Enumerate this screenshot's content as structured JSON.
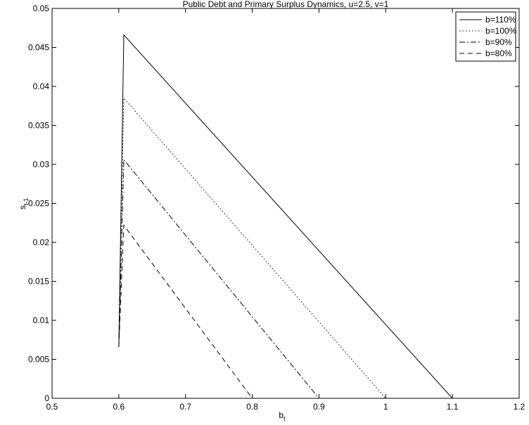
{
  "chart_data": {
    "type": "line",
    "title": "Public Debt and Primary Surplus Dynamics, u=2.5, v=1",
    "xlabel": "b",
    "xlabel_sub": "t",
    "ylabel": "s",
    "ylabel_sub": "t-1",
    "xlim": [
      0.5,
      1.2
    ],
    "ylim": [
      0,
      0.05
    ],
    "xticks": [
      0.5,
      0.6,
      0.7,
      0.8,
      0.9,
      1.0,
      1.1,
      1.2
    ],
    "xtick_labels": [
      "0.5",
      "0.6",
      "0.7",
      "0.8",
      "0.9",
      "1",
      "1.1",
      "1.2"
    ],
    "yticks": [
      0,
      0.005,
      0.01,
      0.015,
      0.02,
      0.025,
      0.03,
      0.035,
      0.04,
      0.045,
      0.05
    ],
    "ytick_labels": [
      "0",
      "0.005",
      "0.01",
      "0.015",
      "0.02",
      "0.025",
      "0.03",
      "0.035",
      "0.04",
      "0.045",
      "0.05"
    ],
    "grid": false,
    "legend_position": "top-right",
    "series": [
      {
        "name": "b=110%",
        "style": "solid",
        "x": [
          0.6,
          0.6075,
          1.1
        ],
        "y": [
          0.0066,
          0.0466,
          0.0
        ]
      },
      {
        "name": "b=100%",
        "style": "dotted",
        "x": [
          0.6,
          0.6075,
          1.0
        ],
        "y": [
          0.0066,
          0.0385,
          0.0
        ]
      },
      {
        "name": "b=90%",
        "style": "dashdot",
        "x": [
          0.6,
          0.6075,
          0.9
        ],
        "y": [
          0.0066,
          0.0306,
          0.0
        ]
      },
      {
        "name": "b=80%",
        "style": "dashed",
        "x": [
          0.6,
          0.6075,
          0.8
        ],
        "y": [
          0.0066,
          0.0222,
          0.0
        ]
      }
    ]
  }
}
